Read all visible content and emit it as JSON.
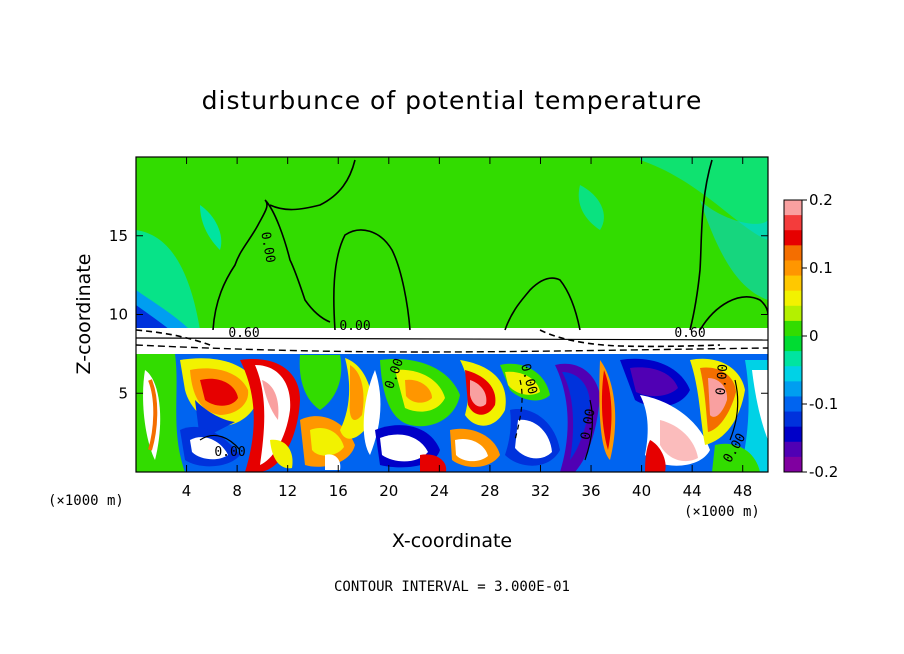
{
  "chart_data": {
    "type": "heatmap",
    "title": "disturbunce of potential temperature",
    "xlabel": "X-coordinate",
    "ylabel": "Z-coordinate",
    "x_unit": "(×1000 m)",
    "z_unit": "(×1000 m)",
    "xlim": [
      0,
      50
    ],
    "ylim": [
      0,
      20
    ],
    "x_ticks": [
      4,
      8,
      12,
      16,
      20,
      24,
      28,
      32,
      36,
      40,
      44,
      48
    ],
    "y_ticks": [
      5,
      10,
      15
    ],
    "colorbar": {
      "range": [
        -0.2,
        0.2
      ],
      "tick_labels": [
        "0.2",
        "0.1",
        "0",
        "-0.1",
        "-0.2"
      ],
      "colors": [
        "#f9a0a0",
        "#f43c3c",
        "#e60000",
        "#f46e00",
        "#ff9600",
        "#ffc800",
        "#f2f200",
        "#b4f000",
        "#32dc00",
        "#00dc32",
        "#00e4a0",
        "#00d2e6",
        "#009ef0",
        "#0064f0",
        "#0032dc",
        "#0000c8",
        "#5000b4",
        "#8000a0"
      ]
    },
    "contour_labels": [
      "0.60",
      "0.00",
      "0.00",
      "0.00",
      "0.00",
      "0.00",
      "0.00",
      "0.60",
      "0.00",
      "0.00"
    ],
    "contour_interval_text": "CONTOUR INTERVAL = 3.000E-01"
  },
  "colors": {
    "upper_layer": "#32dc00",
    "upper_layer_alt": "#00e4a0",
    "inversion_band": "#ffffff"
  }
}
